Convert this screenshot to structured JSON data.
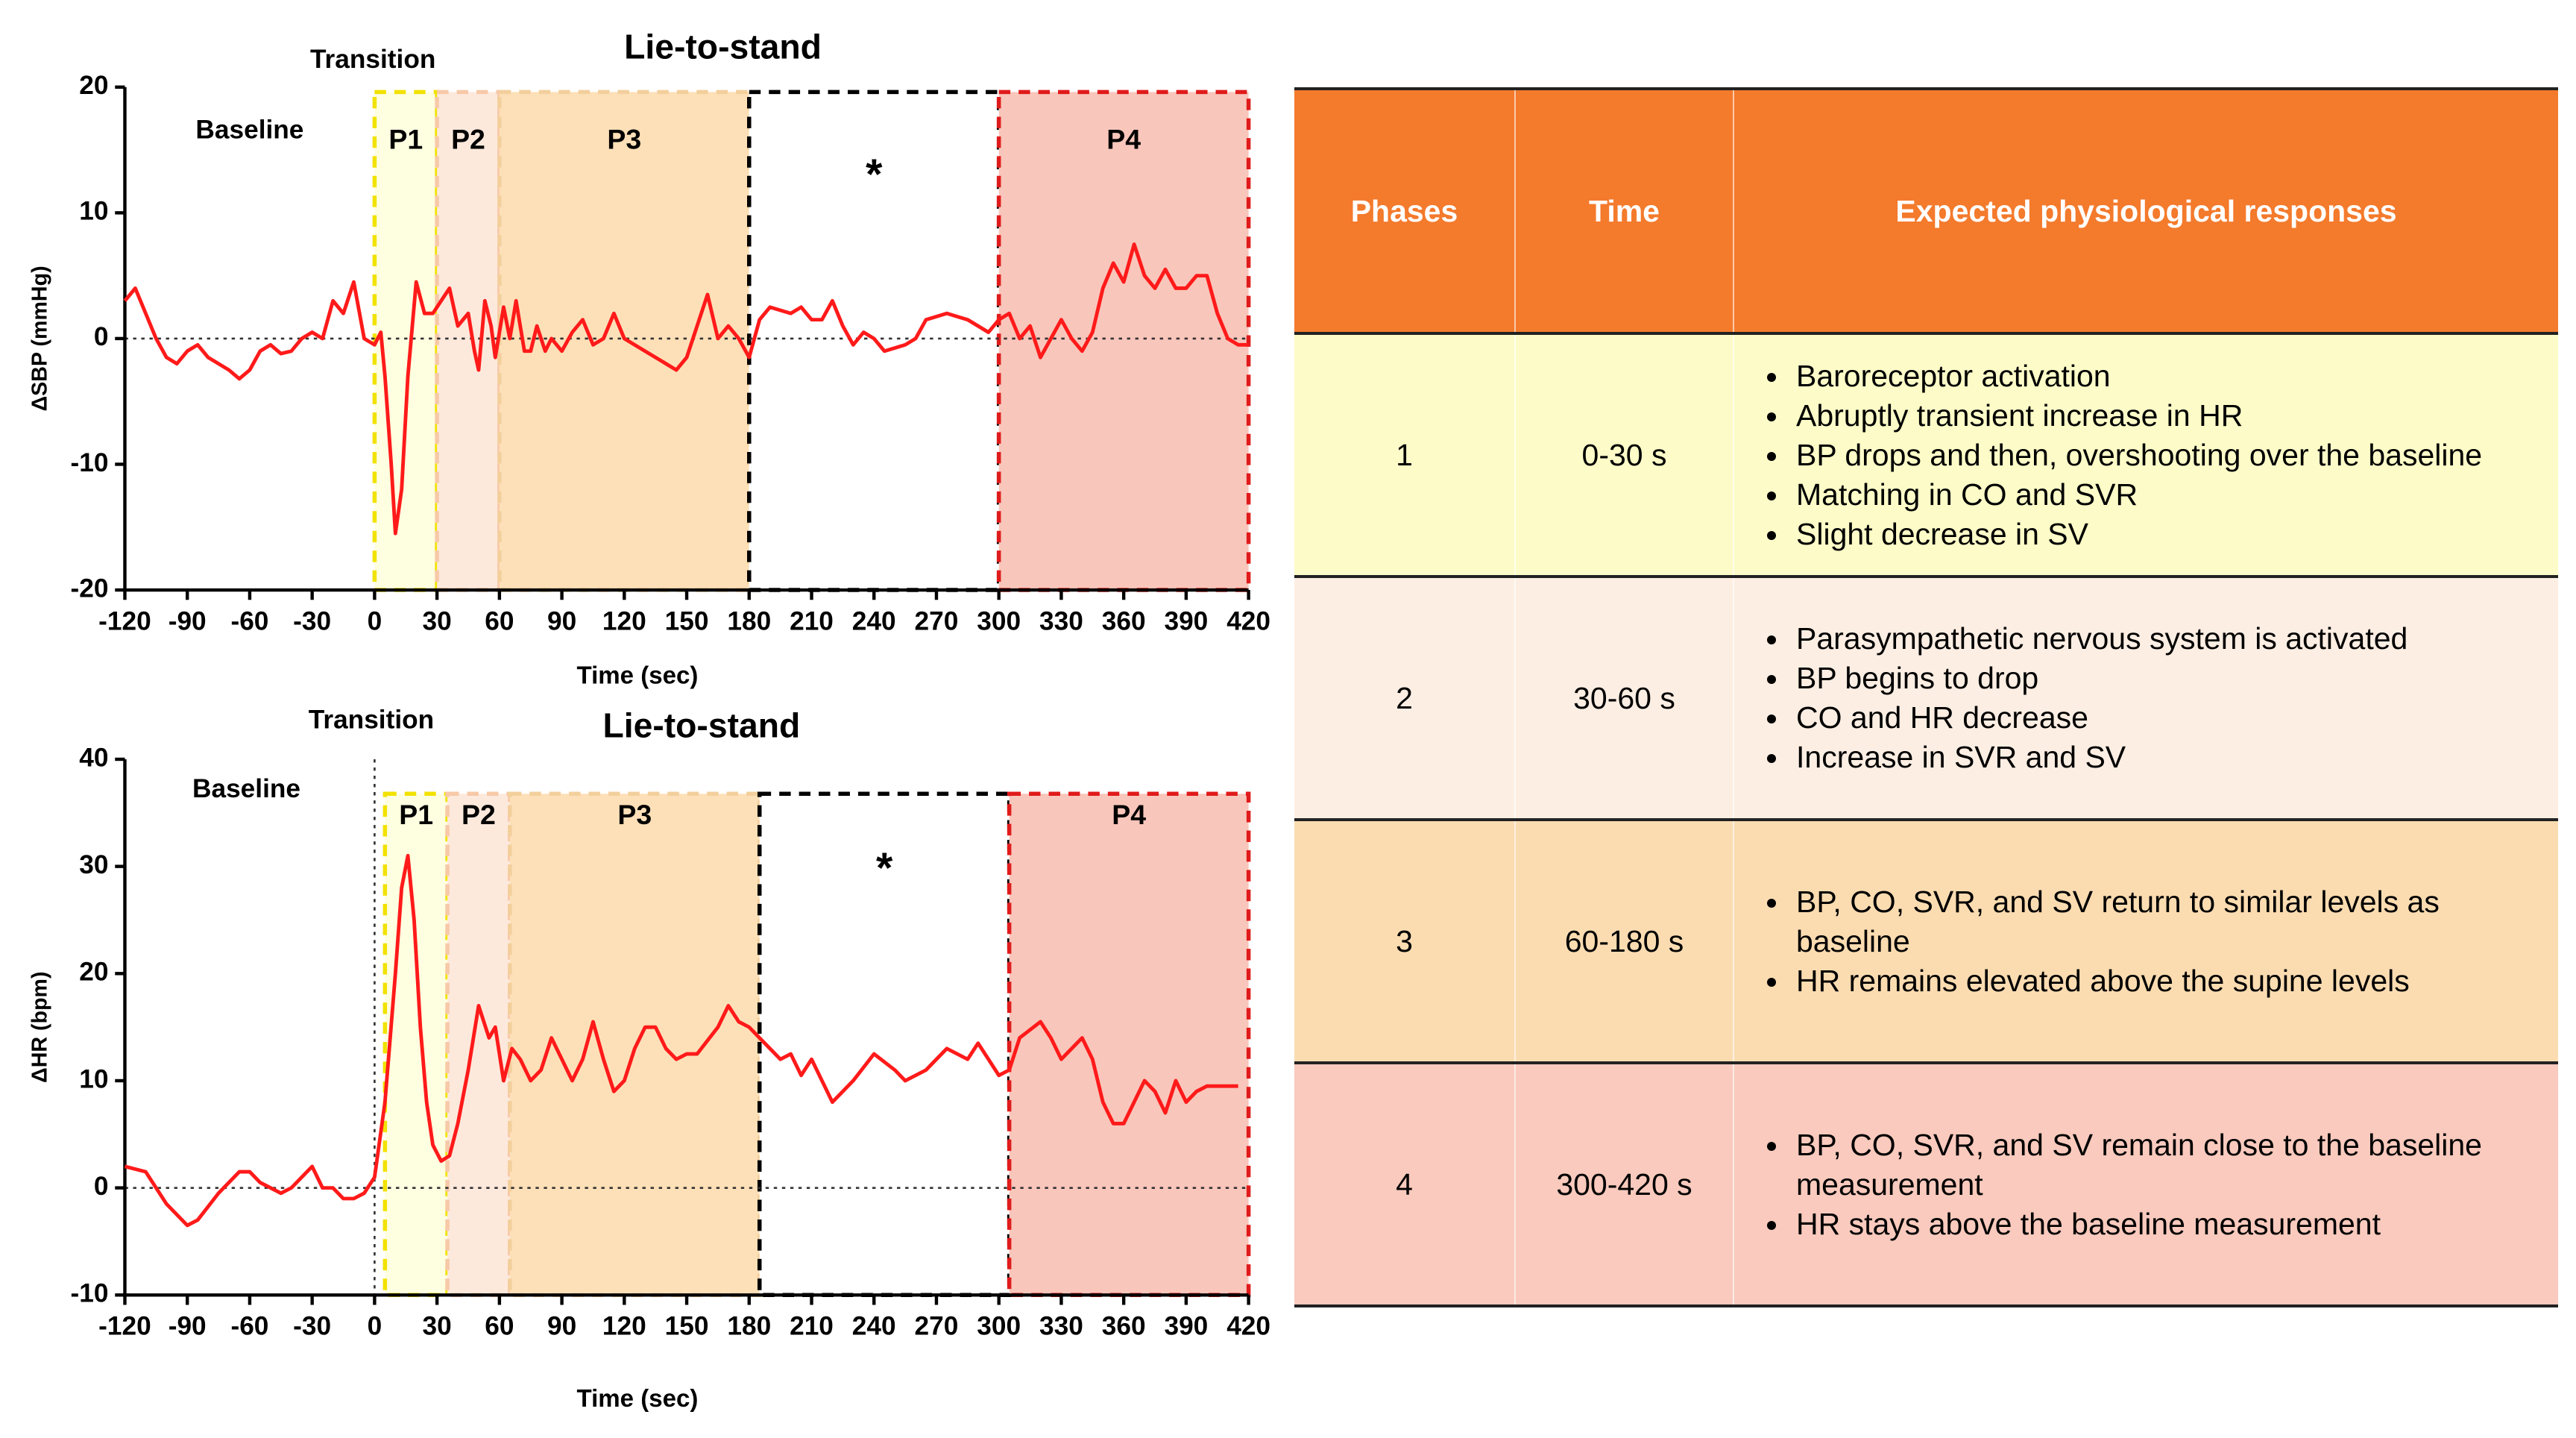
{
  "chart_data": [
    {
      "type": "line",
      "title": "Lie-to-stand",
      "xlabel": "Time (sec)",
      "ylabel": "ΔSBP (mmHg)",
      "annotations": [
        "Transition",
        "Baseline"
      ],
      "x": [
        -120,
        -115,
        -110,
        -105,
        -100,
        -95,
        -90,
        -85,
        -80,
        -70,
        -65,
        -60,
        -55,
        -50,
        -45,
        -40,
        -35,
        -30,
        -25,
        -20,
        -15,
        -10,
        -5,
        0,
        3,
        5,
        8,
        10,
        13,
        16,
        20,
        24,
        28,
        32,
        36,
        40,
        45,
        48,
        50,
        53,
        56,
        58,
        62,
        65,
        68,
        72,
        75,
        78,
        82,
        85,
        90,
        95,
        100,
        105,
        110,
        115,
        120,
        130,
        140,
        145,
        150,
        155,
        160,
        165,
        170,
        175,
        180,
        185,
        190,
        200,
        205,
        210,
        215,
        220,
        225,
        230,
        235,
        240,
        245,
        255,
        260,
        265,
        275,
        285,
        295,
        300,
        305,
        310,
        315,
        320,
        325,
        330,
        335,
        340,
        345,
        350,
        355,
        360,
        365,
        370,
        375,
        380,
        385,
        390,
        395,
        400,
        405,
        410,
        415,
        420
      ],
      "values": [
        3,
        4,
        2,
        0,
        -1.5,
        -2,
        -1,
        -0.5,
        -1.5,
        -2.5,
        -3.2,
        -2.5,
        -1,
        -0.5,
        -1.2,
        -1,
        0,
        0.5,
        0,
        3,
        2,
        4.5,
        0,
        -0.5,
        0.5,
        -3,
        -10,
        -15.5,
        -12,
        -3,
        4.5,
        2,
        2,
        3,
        4,
        1,
        2,
        -1,
        -2.5,
        3,
        1,
        -1.5,
        2.5,
        0,
        3,
        -1,
        -1,
        1,
        -1,
        0,
        -1,
        0.5,
        1.5,
        -0.5,
        0,
        2,
        0,
        -1,
        -2,
        -2.5,
        -1.5,
        1,
        3.5,
        0,
        1,
        0,
        -1.5,
        1.5,
        2.5,
        2,
        2.5,
        1.5,
        1.5,
        3,
        1,
        -0.5,
        0.5,
        0,
        -1,
        -0.5,
        0,
        1.5,
        2,
        1.5,
        0.5,
        1.5,
        2,
        0,
        1,
        -1.5,
        0,
        1.5,
        0,
        -1,
        0.5,
        4,
        6,
        4.5,
        7.5,
        5,
        4,
        5.5,
        4,
        4,
        5,
        5,
        2,
        0,
        -0.5,
        -0.5
      ],
      "color": "#ff1a1a",
      "regions": [
        {
          "label": "P1",
          "x": [
            0,
            30
          ],
          "color": "#f2e200",
          "fill": "#fefee0"
        },
        {
          "label": "P2",
          "x": [
            30,
            60
          ],
          "color": "#f7c9a8",
          "fill": "#fde9dc"
        },
        {
          "label": "P3",
          "x": [
            60,
            180
          ],
          "color": "#f3cf9c",
          "fill": "#fde0b8"
        },
        {
          "label": "*",
          "x": [
            180,
            300
          ],
          "color": "#000000",
          "fill": "#ffffff"
        },
        {
          "label": "P4",
          "x": [
            300,
            420
          ],
          "color": "#e01b1b",
          "fill": "#f9c6bb"
        }
      ],
      "xlim": [
        -120,
        420
      ],
      "xticks": [
        -120,
        -90,
        -60,
        -30,
        0,
        30,
        60,
        90,
        120,
        150,
        180,
        210,
        240,
        270,
        300,
        330,
        360,
        390,
        420
      ],
      "ylim": [
        -20,
        20
      ],
      "yticks": [
        -20,
        -10,
        0,
        10,
        20
      ],
      "zero_line": true
    },
    {
      "type": "line",
      "title": "Lie-to-stand",
      "xlabel": "Time (sec)",
      "ylabel": "ΔHR (bpm)",
      "annotations": [
        "Transition",
        "Baseline"
      ],
      "x": [
        -120,
        -110,
        -100,
        -90,
        -85,
        -75,
        -65,
        -60,
        -55,
        -45,
        -40,
        -35,
        -30,
        -25,
        -20,
        -15,
        -10,
        -5,
        0,
        5,
        10,
        13,
        16,
        19,
        22,
        25,
        28,
        32,
        36,
        40,
        45,
        50,
        55,
        58,
        62,
        66,
        70,
        75,
        80,
        85,
        90,
        95,
        100,
        105,
        110,
        115,
        120,
        125,
        130,
        135,
        140,
        145,
        150,
        155,
        165,
        170,
        175,
        180,
        185,
        190,
        195,
        200,
        205,
        210,
        215,
        220,
        230,
        240,
        250,
        255,
        265,
        275,
        285,
        290,
        295,
        300,
        305,
        310,
        320,
        325,
        330,
        340,
        345,
        350,
        355,
        360,
        365,
        370,
        375,
        380,
        385,
        390,
        395,
        400,
        410,
        415
      ],
      "values": [
        2,
        1.5,
        -1.5,
        -3.5,
        -3,
        -0.5,
        1.5,
        1.5,
        0.5,
        -0.5,
        0,
        1,
        2,
        0,
        0,
        -1,
        -1,
        -0.5,
        1,
        8,
        20,
        28,
        31,
        25,
        15,
        8,
        4,
        2.5,
        3,
        6,
        11,
        17,
        14,
        15,
        10,
        13,
        12,
        10,
        11,
        14,
        12,
        10,
        12,
        15.5,
        12,
        9,
        10,
        13,
        15,
        15,
        13,
        12,
        12.5,
        12.5,
        15,
        17,
        15.5,
        15,
        14,
        13,
        12,
        12.5,
        10.5,
        12,
        10,
        8,
        10,
        12.5,
        11,
        10,
        11,
        13,
        12,
        13.5,
        12,
        10.5,
        11,
        14,
        15.5,
        14,
        12,
        14,
        12,
        8,
        6,
        6,
        8,
        10,
        9,
        7,
        10,
        8,
        9,
        9.5,
        9.5,
        9.5
      ],
      "color": "#ff1a1a",
      "regions": [
        {
          "label": "P1",
          "x": [
            5,
            35
          ],
          "color": "#f2e200",
          "fill": "#fefee0"
        },
        {
          "label": "P2",
          "x": [
            35,
            65
          ],
          "color": "#f7c9a8",
          "fill": "#fde9dc"
        },
        {
          "label": "P3",
          "x": [
            65,
            185
          ],
          "color": "#f3cf9c",
          "fill": "#fde0b8"
        },
        {
          "label": "*",
          "x": [
            185,
            305
          ],
          "color": "#000000",
          "fill": "#ffffff"
        },
        {
          "label": "P4",
          "x": [
            305,
            420
          ],
          "color": "#e01b1b",
          "fill": "#f9c6bb"
        }
      ],
      "xlim": [
        -120,
        420
      ],
      "xticks": [
        -120,
        -90,
        -60,
        -30,
        0,
        30,
        60,
        90,
        120,
        150,
        180,
        210,
        240,
        270,
        300,
        330,
        360,
        390,
        420
      ],
      "ylim": [
        -10,
        40
      ],
      "yticks": [
        -10,
        0,
        10,
        20,
        30,
        40
      ],
      "zero_line": true
    }
  ],
  "table": {
    "headers": [
      "Phases",
      "Time",
      "Expected physiological responses"
    ],
    "rows": [
      {
        "phase": "1",
        "time": "0-30 s",
        "responses": [
          "Baroreceptor activation",
          "Abruptly transient increase in HR",
          "BP drops and then, overshooting over the baseline",
          "Matching in CO and SVR",
          "Slight decrease in SV"
        ]
      },
      {
        "phase": "2",
        "time": "30-60 s",
        "responses": [
          "Parasympathetic nervous system is activated",
          "BP begins to drop",
          "CO and HR decrease",
          "Increase in SVR and SV"
        ]
      },
      {
        "phase": "3",
        "time": "60-180 s",
        "responses": [
          "BP, CO, SVR, and SV return to similar levels as baseline",
          "HR remains elevated above the supine levels"
        ]
      },
      {
        "phase": "4",
        "time": "300-420 s",
        "responses": [
          "BP, CO, SVR, and SV remain close to the baseline measurement",
          "HR stays above the baseline measurement"
        ]
      }
    ]
  }
}
